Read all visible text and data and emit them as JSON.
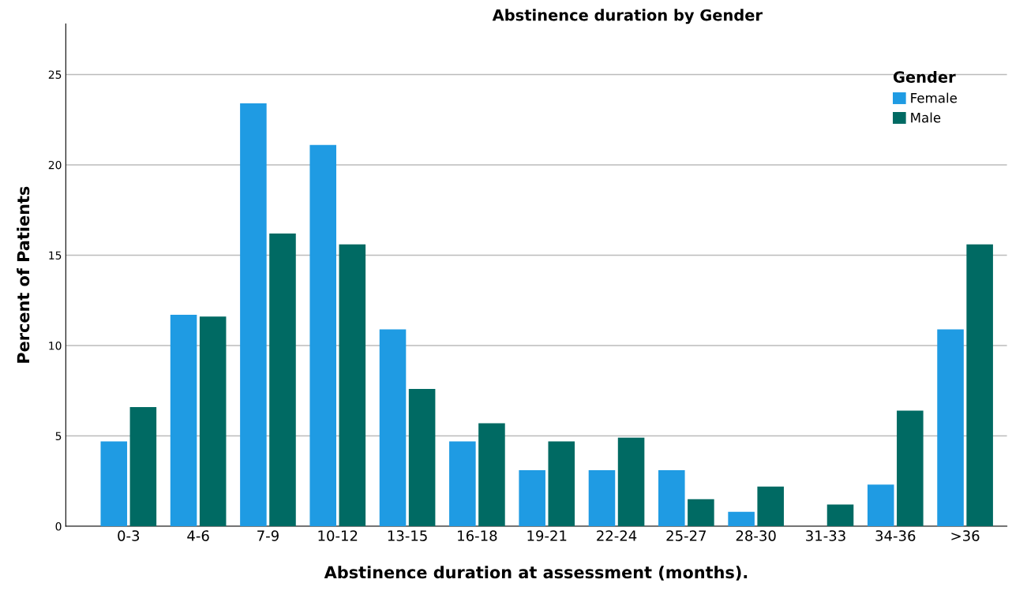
{
  "chart_data": {
    "type": "bar",
    "title": "Abstinence duration by Gender",
    "xlabel": "Abstinence duration at assessment (months).",
    "ylabel": "Percent of Patients",
    "legend_title": "Gender",
    "legend": "top right",
    "grid": "y",
    "categories": [
      "0-3",
      "4-6",
      "7-9",
      "10-12",
      "13-15",
      "16-18",
      "19-21",
      "22-24",
      "25-27",
      "28-30",
      "31-33",
      "34-36",
      ">36"
    ],
    "series": [
      {
        "name": "Female",
        "color": "#1f9be3",
        "values": [
          4.7,
          11.7,
          23.4,
          21.1,
          10.9,
          4.7,
          3.1,
          3.1,
          3.1,
          0.8,
          0,
          2.3,
          10.9
        ]
      },
      {
        "name": "Male",
        "color": "#006a63",
        "values": [
          6.6,
          11.6,
          16.2,
          15.6,
          7.6,
          5.7,
          4.7,
          4.9,
          1.5,
          2.2,
          1.2,
          6.4,
          15.6
        ]
      }
    ],
    "ylim": [
      0,
      27.8
    ],
    "yticks": [
      0,
      5,
      10,
      15,
      20,
      25
    ]
  }
}
